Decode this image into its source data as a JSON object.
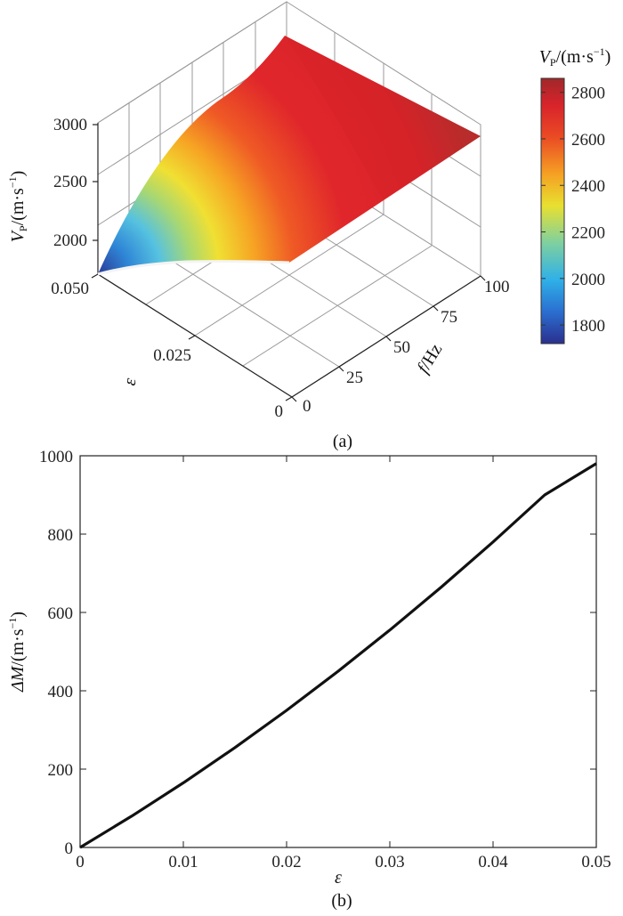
{
  "chart_data": [
    {
      "type": "surface",
      "caption": "(a)",
      "zlabel_var": "V",
      "zlabel_sub": "P",
      "zlabel_unit_open": "/(m·s",
      "zlabel_unit_exp": "−1",
      "zlabel_unit_close": ")",
      "xlabel_var": "f",
      "xlabel_unit": "/Hz",
      "ylabel": "ε",
      "x_ticks": [
        "0",
        "25",
        "50",
        "75",
        "100"
      ],
      "y_ticks": [
        "0",
        "0.025",
        "0.050"
      ],
      "z_ticks": [
        "2000",
        "2500",
        "3000"
      ],
      "xlim": [
        0,
        100
      ],
      "ylim": [
        0,
        0.05
      ],
      "zlim": [
        1700,
        3000
      ],
      "grid": true,
      "colorbar": {
        "title_var": "V",
        "title_sub": "P",
        "title_unit_open": "/(m·s",
        "title_unit_exp": "−1",
        "title_unit_close": ")",
        "ticks": [
          "1800",
          "2000",
          "2200",
          "2400",
          "2600",
          "2800"
        ],
        "range": [
          1720,
          2860
        ],
        "colormap": "jet"
      }
    },
    {
      "type": "line",
      "caption": "(b)",
      "xlabel": "ε",
      "ylabel_var": "ΔM",
      "ylabel_unit_open": "/(m·s",
      "ylabel_unit_exp": "−1",
      "ylabel_unit_close": ")",
      "xlim": [
        0,
        0.05
      ],
      "ylim": [
        0,
        1000
      ],
      "x_ticks": [
        "0",
        "0.01",
        "0.02",
        "0.03",
        "0.04",
        "0.05"
      ],
      "y_ticks": [
        "0",
        "200",
        "400",
        "600",
        "800",
        "1000"
      ],
      "series": [
        {
          "x": [
            0,
            0.005,
            0.01,
            0.015,
            0.02,
            0.025,
            0.03,
            0.035,
            0.04,
            0.045,
            0.05
          ],
          "y": [
            0,
            80,
            165,
            255,
            350,
            450,
            555,
            665,
            780,
            900,
            980
          ],
          "color": "#111111"
        }
      ]
    }
  ]
}
